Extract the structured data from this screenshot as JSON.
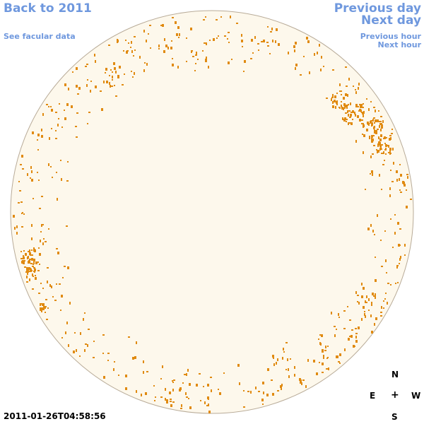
{
  "nav": {
    "back_label": "Back to 2011",
    "facular_label": "See facular data",
    "prev_day_label": "Previous day",
    "next_day_label": "Next day",
    "prev_hour_label": "Previous hour",
    "next_hour_label": "Next hour"
  },
  "timestamp": "2011-01-26T04:58:56",
  "compass": {
    "north": "N",
    "east": "E",
    "west": "W",
    "south": "S",
    "center": "+"
  },
  "colors": {
    "link": "#6f98de",
    "disk_fill": "#fdf8ec",
    "disk_edge": "#b8ab98",
    "feature": "#e08a10"
  }
}
